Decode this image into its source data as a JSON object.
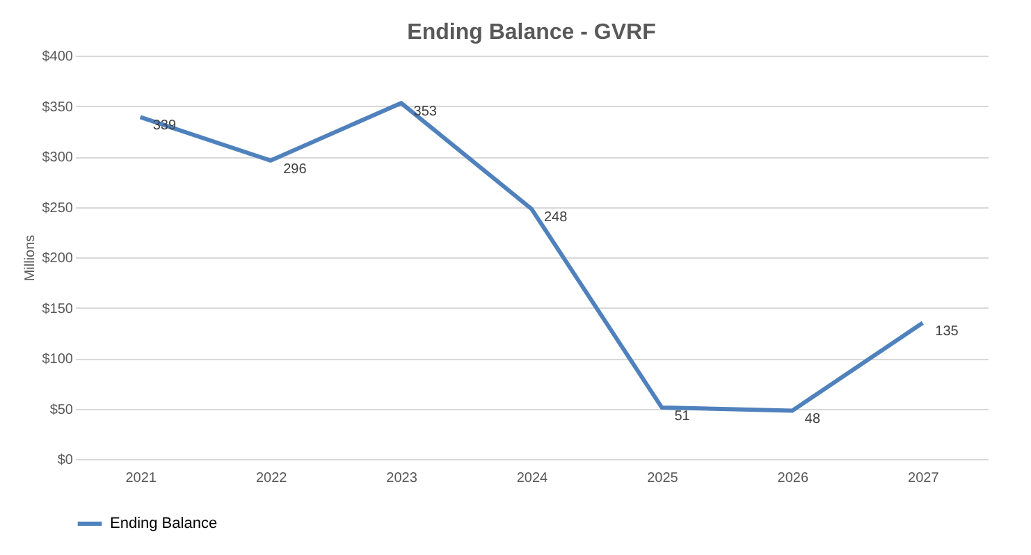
{
  "chart_data": {
    "type": "line",
    "title": "Ending Balance  - GVRF",
    "ylabel": "Millions",
    "categories": [
      "2021",
      "2022",
      "2023",
      "2024",
      "2025",
      "2026",
      "2027"
    ],
    "series": [
      {
        "name": "Ending Balance",
        "color": "#4f81bd",
        "values": [
          339,
          296,
          353,
          248,
          51,
          48,
          135
        ]
      }
    ],
    "ylim": [
      0,
      400
    ],
    "yticks": [
      {
        "value": 0,
        "label": "$0"
      },
      {
        "value": 50,
        "label": "$50"
      },
      {
        "value": 100,
        "label": "$100"
      },
      {
        "value": 150,
        "label": "$150"
      },
      {
        "value": 200,
        "label": "$200"
      },
      {
        "value": 250,
        "label": "$250"
      },
      {
        "value": 300,
        "label": "$300"
      },
      {
        "value": 350,
        "label": "$350"
      },
      {
        "value": 400,
        "label": "$400"
      }
    ],
    "grid": "y",
    "legend": "bottom",
    "marker": "none",
    "line_style": "solid",
    "data_labels": true
  }
}
